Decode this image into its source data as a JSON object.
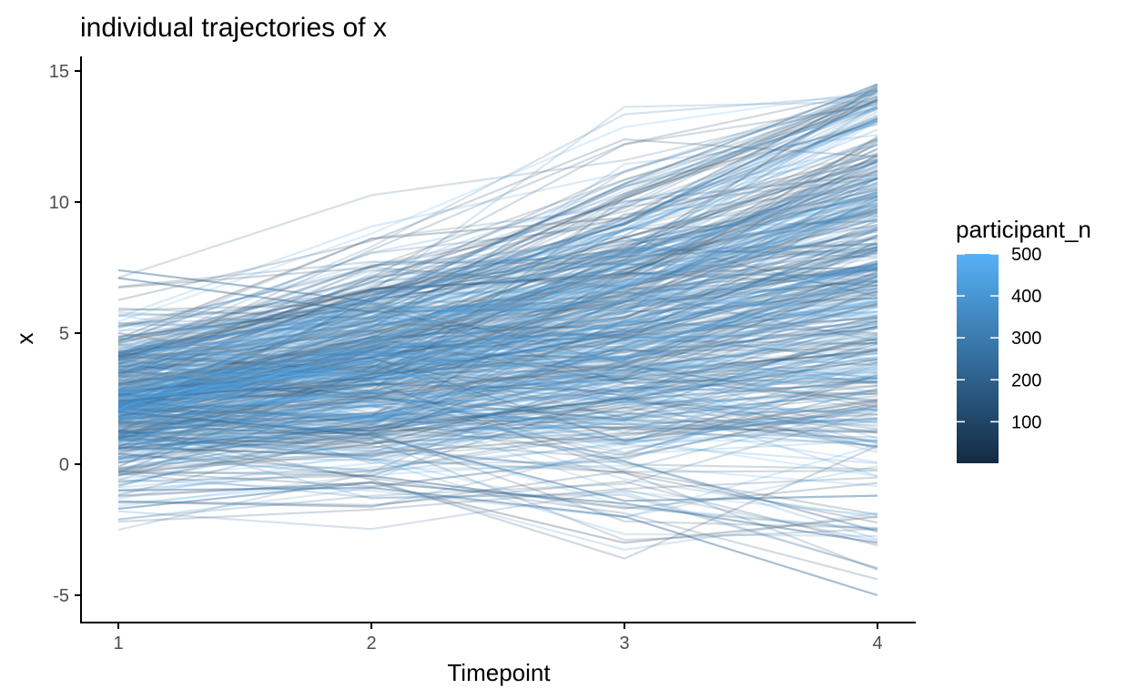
{
  "chart_data": {
    "type": "line",
    "title": "individual trajectories of x",
    "xlabel": "Timepoint",
    "ylabel": "x",
    "x": [
      1,
      2,
      3,
      4
    ],
    "x_ticks": [
      "1",
      "2",
      "3",
      "4"
    ],
    "y_ticks": [
      "-5",
      "0",
      "5",
      "10",
      "15"
    ],
    "xlim": [
      0.85,
      4.15
    ],
    "ylim": [
      -5.9,
      15.4
    ],
    "grid": false,
    "series_count": 500,
    "series_alpha": 0.2,
    "legend": {
      "title": "participant_n",
      "placement": "right",
      "type": "colorbar",
      "range": [
        1,
        500
      ],
      "ticks": [
        "100",
        "200",
        "300",
        "400",
        "500"
      ],
      "colors": [
        "#132B43",
        "#56B1F7"
      ]
    },
    "representative_trajectories": [
      [
        5.0,
        3.5,
        6.5,
        12.5
      ],
      [
        7.4,
        6.2,
        10.7,
        14.5
      ],
      [
        4.8,
        8.6,
        9.4,
        11.8
      ],
      [
        7.1,
        5.8,
        9.2,
        13.9
      ],
      [
        3.0,
        4.6,
        7.4,
        10.9
      ],
      [
        2.4,
        3.3,
        5.0,
        8.7
      ],
      [
        1.5,
        2.6,
        3.8,
        6.1
      ],
      [
        0.6,
        1.4,
        2.5,
        4.0
      ],
      [
        -0.3,
        0.4,
        1.1,
        2.4
      ],
      [
        -1.7,
        -0.7,
        -1.5,
        -3.0
      ],
      [
        -1.2,
        -0.7,
        -3.0,
        -2.0
      ],
      [
        -1.0,
        -0.9,
        -2.0,
        -5.0
      ],
      [
        4.0,
        5.1,
        6.2,
        9.6
      ],
      [
        2.0,
        1.1,
        -1.4,
        -1.2
      ],
      [
        3.6,
        2.8,
        4.9,
        5.6
      ]
    ]
  }
}
